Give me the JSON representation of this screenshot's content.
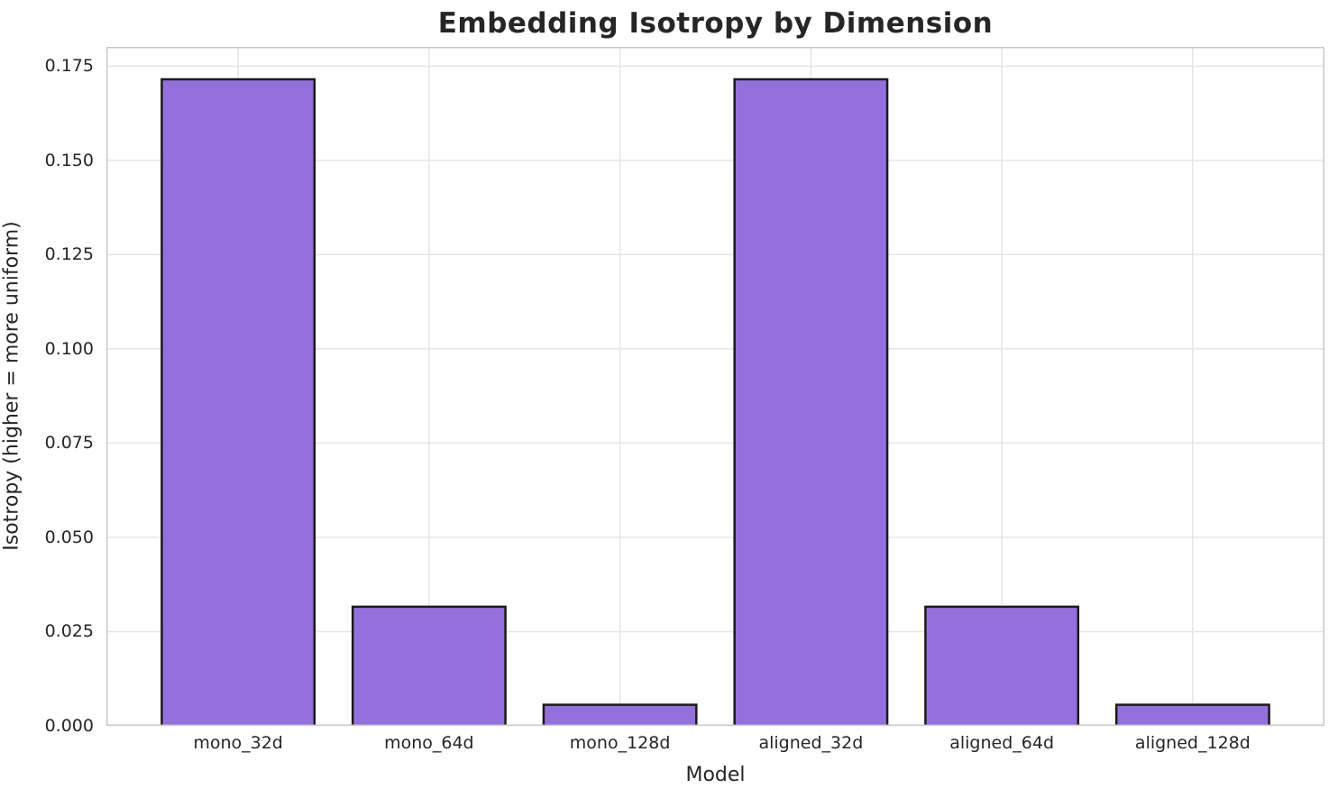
{
  "chart_data": {
    "type": "bar",
    "title": "Embedding Isotropy by Dimension",
    "xlabel": "Model",
    "ylabel": "Isotropy (higher = more uniform)",
    "categories": [
      "mono_32d",
      "mono_64d",
      "mono_128d",
      "aligned_32d",
      "aligned_64d",
      "aligned_128d"
    ],
    "values": [
      0.1715,
      0.0316,
      0.0056,
      0.1715,
      0.0316,
      0.0056
    ],
    "yticks": [
      0.0,
      0.025,
      0.05,
      0.075,
      0.1,
      0.125,
      0.15,
      0.175
    ],
    "ytick_labels": [
      "0.000",
      "0.025",
      "0.050",
      "0.075",
      "0.100",
      "0.125",
      "0.150",
      "0.175"
    ],
    "ylim": [
      0,
      0.1801
    ],
    "xlim": [
      -0.69,
      5.69
    ],
    "bar_width_fraction": 0.8,
    "grid": true,
    "legend_position": "none",
    "colors": {
      "bar_fill": "#9370DB",
      "bar_edge": "#1a1a1a",
      "grid": "#e5e5e5",
      "spine": "#c9c9c9",
      "text": "#262626",
      "background": "#ffffff"
    }
  }
}
